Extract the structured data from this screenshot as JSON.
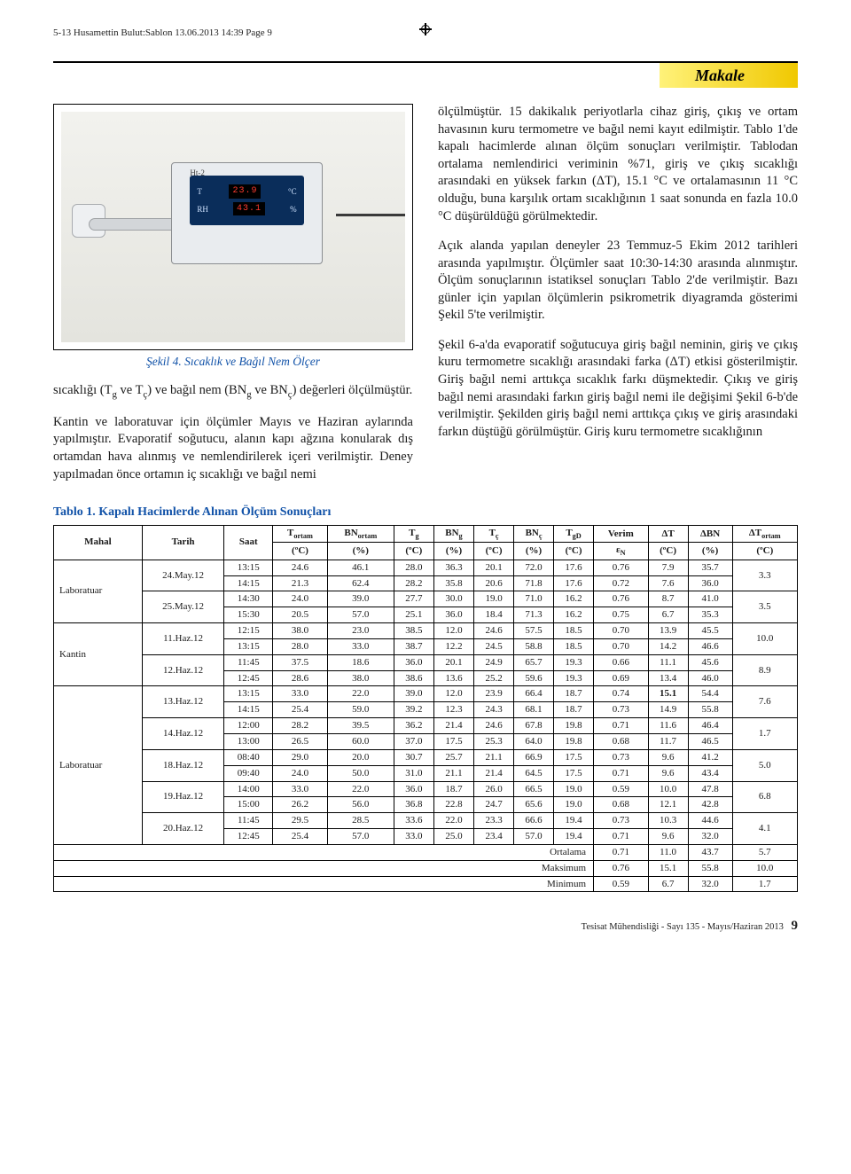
{
  "runningHeader": "5-13 Husamettin Bulut:Sablon  13.06.2013  14:39  Page 9",
  "sectionLabel": "Makale",
  "figure4": {
    "device": {
      "topLabel": "Ht-2",
      "row1": {
        "lbl": "T",
        "disp": "23.9",
        "unit": "°C"
      },
      "row2": {
        "lbl": "RH",
        "disp": "43.1",
        "unit": "%"
      }
    },
    "caption": "Şekil 4. Sıcaklık ve Bağıl Nem Ölçer"
  },
  "leftCol": {
    "p1_html": "sıcaklığı (T<sub>g</sub> ve T<sub>ç</sub>) ve bağıl nem (BN<sub>g</sub> ve BN<sub>ç</sub>) değerleri ölçülmüştür.",
    "p2": "Kantin ve laboratuvar için ölçümler Mayıs ve Haziran aylarında yapılmıştır. Evaporatif soğutucu, alanın kapı ağzına konularak dış ortamdan hava alınmış ve nemlendirilerek içeri verilmiştir. Deney yapılmadan önce ortamın iç sıcaklığı ve bağıl nemi"
  },
  "rightCol": {
    "p1": "ölçülmüştür. 15 dakikalık periyotlarla cihaz giriş, çıkış ve ortam havasının kuru termometre ve bağıl nemi kayıt edilmiştir. Tablo 1'de kapalı hacimlerde alınan ölçüm sonuçları verilmiştir. Tablodan ortalama nemlendirici veriminin %71, giriş ve çıkış sıcaklığı arasındaki en yüksek farkın (ΔT), 15.1 °C ve ortalamasının 11 °C olduğu, buna karşılık ortam sıcaklığının 1 saat sonunda en fazla 10.0 °C düşürüldüğü görülmektedir.",
    "p2": "Açık alanda yapılan deneyler 23 Temmuz-5 Ekim 2012 tarihleri arasında yapılmıştır. Ölçümler saat 10:30-14:30 arasında alınmıştır. Ölçüm sonuçlarının istatiksel sonuçları Tablo 2'de verilmiştir. Bazı günler için yapılan ölçümlerin psikrometrik diyagramda gösterimi Şekil 5'te verilmiştir.",
    "p3": "Şekil 6-a'da evaporatif soğutucuya giriş bağıl neminin, giriş ve çıkış kuru termometre sıcaklığı arasındaki farka (ΔT) etkisi gösterilmiştir. Giriş bağıl nemi arttıkça sıcaklık farkı düşmektedir. Çıkış ve giriş bağıl nemi arasındaki farkın giriş bağıl nemi ile değişimi Şekil 6-b'de verilmiştir. Şekilden giriş bağıl nemi arttıkça çıkış ve giriş arasındaki farkın düştüğü görülmüştür. Giriş kuru termometre sıcaklığının"
  },
  "table1": {
    "title": "Tablo 1. Kapalı Hacimlerde Alınan Ölçüm Sonuçları",
    "header1": [
      "Mahal",
      "Tarih",
      "Saat",
      "Tortam",
      "BNortam",
      "Tg",
      "BNg",
      "Tç",
      "BNç",
      "TgD",
      "Verim",
      "ΔT",
      "ΔBN",
      "ΔTortam"
    ],
    "unitsRow": [
      "",
      "",
      "",
      "(ºC)",
      "(%)",
      "(ºC)",
      "(%)",
      "(ºC)",
      "(%)",
      "(ºC)",
      "εN",
      "(ºC)",
      "(%)",
      "(ºC)"
    ],
    "groups": [
      {
        "mahal": "Laboratuar",
        "rows": [
          {
            "tarih": "24.May.12",
            "saat": "13:15",
            "v": [
              "24.6",
              "46.1",
              "28.0",
              "36.3",
              "20.1",
              "72.0",
              "17.6",
              "0.76",
              "7.9",
              "35.7",
              "3.3"
            ],
            "tarihRowspan": 2,
            "tarihShow": true,
            "dtShow": true
          },
          {
            "tarih": "",
            "saat": "14:15",
            "v": [
              "21.3",
              "62.4",
              "28.2",
              "35.8",
              "20.6",
              "71.8",
              "17.6",
              "0.72",
              "7.6",
              "36.0",
              ""
            ],
            "tarihShow": false,
            "dtShow": false
          },
          {
            "tarih": "25.May.12",
            "saat": "14:30",
            "v": [
              "24.0",
              "39.0",
              "27.7",
              "30.0",
              "19.0",
              "71.0",
              "16.2",
              "0.76",
              "8.7",
              "41.0",
              "3.5"
            ],
            "tarihRowspan": 2,
            "tarihShow": true,
            "dtShow": true
          },
          {
            "tarih": "",
            "saat": "15:30",
            "v": [
              "20.5",
              "57.0",
              "25.1",
              "36.0",
              "18.4",
              "71.3",
              "16.2",
              "0.75",
              "6.7",
              "35.3",
              ""
            ],
            "tarihShow": false,
            "dtShow": false
          }
        ],
        "mahalRowspan": 4
      },
      {
        "mahal": "Kantin",
        "rows": [
          {
            "tarih": "11.Haz.12",
            "saat": "12:15",
            "v": [
              "38.0",
              "23.0",
              "38.5",
              "12.0",
              "24.6",
              "57.5",
              "18.5",
              "0.70",
              "13.9",
              "45.5",
              "10.0"
            ],
            "tarihRowspan": 2,
            "tarihShow": true,
            "dtShow": true
          },
          {
            "tarih": "",
            "saat": "13:15",
            "v": [
              "28.0",
              "33.0",
              "38.7",
              "12.2",
              "24.5",
              "58.8",
              "18.5",
              "0.70",
              "14.2",
              "46.6",
              ""
            ],
            "tarihShow": false,
            "dtShow": false
          },
          {
            "tarih": "12.Haz.12",
            "saat": "11:45",
            "v": [
              "37.5",
              "18.6",
              "36.0",
              "20.1",
              "24.9",
              "65.7",
              "19.3",
              "0.66",
              "11.1",
              "45.6",
              "8.9"
            ],
            "tarihRowspan": 2,
            "tarihShow": true,
            "dtShow": true
          },
          {
            "tarih": "",
            "saat": "12:45",
            "v": [
              "28.6",
              "38.0",
              "38.6",
              "13.6",
              "25.2",
              "59.6",
              "19.3",
              "0.69",
              "13.4",
              "46.0",
              ""
            ],
            "tarihShow": false,
            "dtShow": false
          }
        ],
        "mahalRowspan": 4
      },
      {
        "mahal": "Laboratuar",
        "rows": [
          {
            "tarih": "13.Haz.12",
            "saat": "13:15",
            "v": [
              "33.0",
              "22.0",
              "39.0",
              "12.0",
              "23.9",
              "66.4",
              "18.7",
              "0.74",
              "15.1",
              "54.4",
              "7.6"
            ],
            "tarihRowspan": 2,
            "tarihShow": true,
            "dtShow": true,
            "bold": [
              8
            ]
          },
          {
            "tarih": "",
            "saat": "14:15",
            "v": [
              "25.4",
              "59.0",
              "39.2",
              "12.3",
              "24.3",
              "68.1",
              "18.7",
              "0.73",
              "14.9",
              "55.8",
              ""
            ],
            "tarihShow": false,
            "dtShow": false
          },
          {
            "tarih": "14.Haz.12",
            "saat": "12:00",
            "v": [
              "28.2",
              "39.5",
              "36.2",
              "21.4",
              "24.6",
              "67.8",
              "19.8",
              "0.71",
              "11.6",
              "46.4",
              "1.7"
            ],
            "tarihRowspan": 2,
            "tarihShow": true,
            "dtShow": true
          },
          {
            "tarih": "",
            "saat": "13:00",
            "v": [
              "26.5",
              "60.0",
              "37.0",
              "17.5",
              "25.3",
              "64.0",
              "19.8",
              "0.68",
              "11.7",
              "46.5",
              ""
            ],
            "tarihShow": false,
            "dtShow": false
          },
          {
            "tarih": "18.Haz.12",
            "saat": "08:40",
            "v": [
              "29.0",
              "20.0",
              "30.7",
              "25.7",
              "21.1",
              "66.9",
              "17.5",
              "0.73",
              "9.6",
              "41.2",
              "5.0"
            ],
            "tarihRowspan": 2,
            "tarihShow": true,
            "dtShow": true
          },
          {
            "tarih": "",
            "saat": "09:40",
            "v": [
              "24.0",
              "50.0",
              "31.0",
              "21.1",
              "21.4",
              "64.5",
              "17.5",
              "0.71",
              "9.6",
              "43.4",
              ""
            ],
            "tarihShow": false,
            "dtShow": false
          },
          {
            "tarih": "19.Haz.12",
            "saat": "14:00",
            "v": [
              "33.0",
              "22.0",
              "36.0",
              "18.7",
              "26.0",
              "66.5",
              "19.0",
              "0.59",
              "10.0",
              "47.8",
              "6.8"
            ],
            "tarihRowspan": 2,
            "tarihShow": true,
            "dtShow": true
          },
          {
            "tarih": "",
            "saat": "15:00",
            "v": [
              "26.2",
              "56.0",
              "36.8",
              "22.8",
              "24.7",
              "65.6",
              "19.0",
              "0.68",
              "12.1",
              "42.8",
              ""
            ],
            "tarihShow": false,
            "dtShow": false
          },
          {
            "tarih": "20.Haz.12",
            "saat": "11:45",
            "v": [
              "29.5",
              "28.5",
              "33.6",
              "22.0",
              "23.3",
              "66.6",
              "19.4",
              "0.73",
              "10.3",
              "44.6",
              "4.1"
            ],
            "tarihRowspan": 2,
            "tarihShow": true,
            "dtShow": true
          },
          {
            "tarih": "",
            "saat": "12:45",
            "v": [
              "25.4",
              "57.0",
              "33.0",
              "25.0",
              "23.4",
              "57.0",
              "19.4",
              "0.71",
              "9.6",
              "32.0",
              ""
            ],
            "tarihShow": false,
            "dtShow": false
          }
        ],
        "mahalRowspan": 10
      }
    ],
    "summary": [
      {
        "label": "Ortalama",
        "v": [
          "0.71",
          "11.0",
          "43.7",
          "5.7"
        ]
      },
      {
        "label": "Maksimum",
        "v": [
          "0.76",
          "15.1",
          "55.8",
          "10.0"
        ]
      },
      {
        "label": "Minimum",
        "v": [
          "0.59",
          "6.7",
          "32.0",
          "1.7"
        ]
      }
    ]
  },
  "footer": {
    "text": "Tesisat Mühendisliği - Sayı 135 - Mayıs/Haziran 2013",
    "page": "9"
  },
  "colors": {
    "accentBlue": "#1152a8",
    "highlightYellow": "#f0c800",
    "text": "#1a1a1a"
  }
}
